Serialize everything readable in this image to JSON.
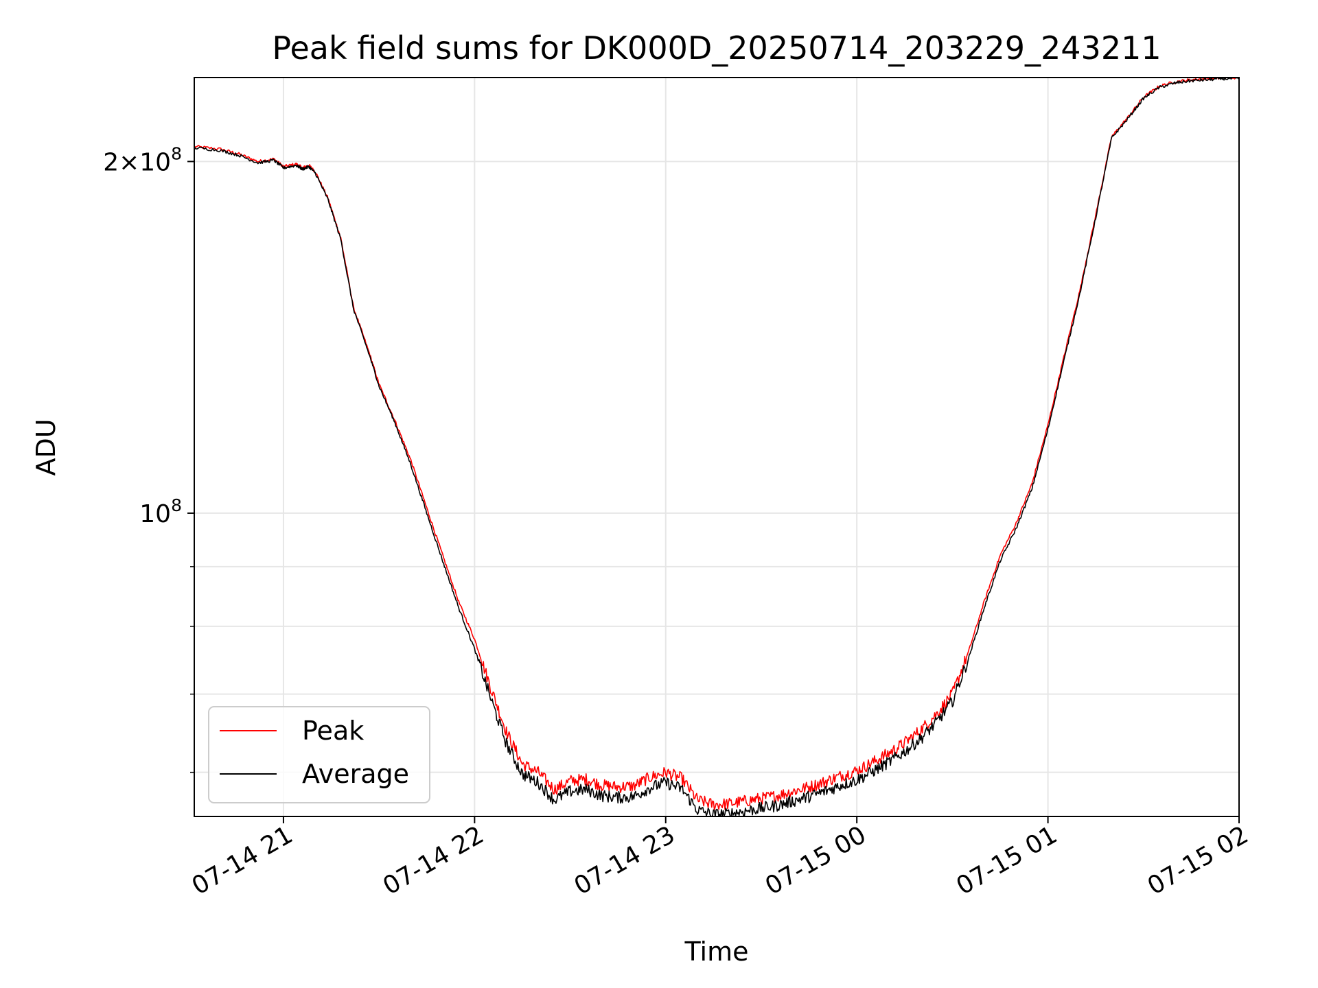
{
  "chart_data": {
    "type": "line",
    "title": "Peak field sums for DK000D_20250714_203229_243211",
    "xlabel": "Time",
    "ylabel": "ADU",
    "xlim": [
      "2025-07-14 20:32",
      "2025-07-15 02:00"
    ],
    "ylim": [
      55000000,
      236000000
    ],
    "yscale": "log",
    "grid": true,
    "legend_position": "lower-left",
    "x_ticks": [
      "07-14 21",
      "07-14 22",
      "07-14 23",
      "07-15 00",
      "07-15 01",
      "07-15 02"
    ],
    "y_ticks": [
      {
        "label_base": "2×10",
        "label_exp": "8",
        "value": 200000000
      },
      {
        "label_base": "10",
        "label_exp": "8",
        "value": 100000000
      }
    ],
    "x": [
      "2025-07-14 20:32",
      "2025-07-14 20:40",
      "2025-07-14 20:46",
      "2025-07-14 20:52",
      "2025-07-14 20:57",
      "2025-07-14 21:00",
      "2025-07-14 21:04",
      "2025-07-14 21:06",
      "2025-07-14 21:08",
      "2025-07-14 21:10",
      "2025-07-14 21:14",
      "2025-07-14 21:18",
      "2025-07-14 21:22",
      "2025-07-14 21:27",
      "2025-07-14 21:30",
      "2025-07-14 21:35",
      "2025-07-14 21:40",
      "2025-07-14 21:45",
      "2025-07-14 21:50",
      "2025-07-14 21:55",
      "2025-07-14 22:00",
      "2025-07-14 22:05",
      "2025-07-14 22:10",
      "2025-07-14 22:15",
      "2025-07-14 22:20",
      "2025-07-14 22:25",
      "2025-07-14 22:30",
      "2025-07-14 22:35",
      "2025-07-14 22:40",
      "2025-07-14 22:45",
      "2025-07-14 22:50",
      "2025-07-14 22:55",
      "2025-07-14 23:00",
      "2025-07-14 23:05",
      "2025-07-14 23:10",
      "2025-07-14 23:15",
      "2025-07-14 23:20",
      "2025-07-14 23:25",
      "2025-07-14 23:30",
      "2025-07-14 23:35",
      "2025-07-14 23:40",
      "2025-07-14 23:45",
      "2025-07-14 23:50",
      "2025-07-14 23:55",
      "2025-07-15 00:00",
      "2025-07-15 00:05",
      "2025-07-15 00:10",
      "2025-07-15 00:15",
      "2025-07-15 00:20",
      "2025-07-15 00:25",
      "2025-07-15 00:30",
      "2025-07-15 00:35",
      "2025-07-15 00:40",
      "2025-07-15 00:45",
      "2025-07-15 00:50",
      "2025-07-15 00:55",
      "2025-07-15 01:00",
      "2025-07-15 01:05",
      "2025-07-15 01:10",
      "2025-07-15 01:15",
      "2025-07-15 01:20",
      "2025-07-15 01:25",
      "2025-07-15 01:30",
      "2025-07-15 01:35",
      "2025-07-15 01:40",
      "2025-07-15 01:45",
      "2025-07-15 01:50",
      "2025-07-15 01:55",
      "2025-07-15 02:00"
    ],
    "series": [
      {
        "name": "Peak",
        "color": "#ff0000",
        "values": [
          206000000,
          205000000,
          203000000,
          200000000,
          201000000,
          198000000,
          199000000,
          197500000,
          198500000,
          196000000,
          186000000,
          172000000,
          150000000,
          137000000,
          129000000,
          120000000,
          111000000,
          101000000,
          92000000,
          84000000,
          78000000,
          71000000,
          65000000,
          61000000,
          60000000,
          58000000,
          59000000,
          59200000,
          58500000,
          58300000,
          58400000,
          59400000,
          60000000,
          59300000,
          56800000,
          56300000,
          56400000,
          56700000,
          57000000,
          57300000,
          57800000,
          58300000,
          58900000,
          59600000,
          60200000,
          61200000,
          62300000,
          63600000,
          65200000,
          67300000,
          70000000,
          76000000,
          84000000,
          92000000,
          98000000,
          106000000,
          119000000,
          136000000,
          155000000,
          180000000,
          210000000,
          218000000,
          227000000,
          232000000,
          234000000,
          235000000,
          235500000,
          236000000,
          236000000
        ]
      },
      {
        "name": "Average",
        "color": "#000000",
        "values": [
          205500000,
          204500000,
          202500000,
          199500000,
          200500000,
          197500000,
          198500000,
          197000000,
          198000000,
          195500000,
          185500000,
          171500000,
          149500000,
          136500000,
          128500000,
          119500000,
          110000000,
          100000000,
          91000000,
          83000000,
          76500000,
          69500000,
          63500000,
          59800000,
          58800000,
          56800000,
          57800000,
          58000000,
          57300000,
          57100000,
          57200000,
          58200000,
          58800000,
          58100000,
          55700000,
          55200000,
          55300000,
          55600000,
          55900000,
          56200000,
          56700000,
          57200000,
          57800000,
          58500000,
          59100000,
          60100000,
          61200000,
          62500000,
          64100000,
          66200000,
          69000000,
          75000000,
          83000000,
          91000000,
          97000000,
          105000000,
          118000000,
          135000000,
          154000000,
          179000000,
          209500000,
          217500000,
          226500000,
          231500000,
          233500000,
          234500000,
          235000000,
          235500000,
          235500000
        ]
      }
    ]
  }
}
